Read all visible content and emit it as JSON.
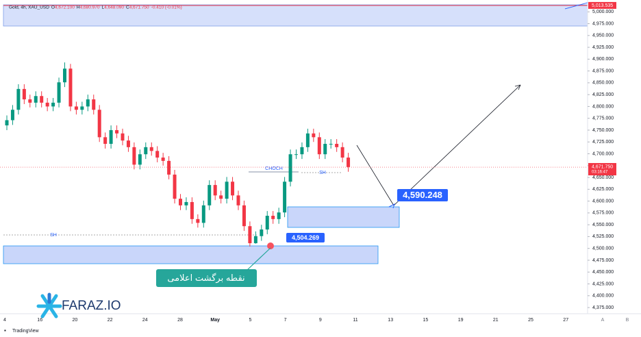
{
  "header": {
    "symbol": "Gold, 4h, XAU_USD",
    "ohlc": [
      {
        "key": "O",
        "value": "4,672.100"
      },
      {
        "key": "H",
        "value": "4,680.970"
      },
      {
        "key": "L",
        "value": "4,648.090"
      },
      {
        "key": "C",
        "value": "4,671.750"
      }
    ],
    "change": "-0.410 (-0.01%)"
  },
  "chart_data": {
    "type": "candlestick",
    "up_color": "#089981",
    "down_color": "#f23645",
    "x_labels": [
      "4",
      "16",
      "20",
      "22",
      "24",
      "28",
      "May",
      "5",
      "7",
      "9",
      "11",
      "13",
      "15",
      "19",
      "21",
      "25",
      "27"
    ],
    "series": [
      {
        "name": "Gold",
        "open": [
          4760,
          4771,
          4793,
          4837,
          4815,
          4808,
          4822,
          4808,
          4800,
          4808,
          4851,
          4880,
          4800,
          4793,
          4800,
          4815,
          4793,
          4735,
          4721,
          4750,
          4743,
          4728,
          4714,
          4677,
          4699,
          4714,
          4706,
          4692,
          4685,
          4656,
          4605,
          4591,
          4598,
          4562,
          4554,
          4591,
          4634,
          4612,
          4605,
          4641,
          4612,
          4591,
          4547,
          4511,
          4526,
          4540,
          4569,
          4562,
          4576,
          4641,
          4699,
          4699,
          4714,
          4743,
          4735,
          4699,
          4721,
          4721,
          4714,
          4692
        ],
        "high": [
          4781,
          4803,
          4847,
          4847,
          4825,
          4832,
          4832,
          4818,
          4818,
          4861,
          4893,
          4890,
          4810,
          4810,
          4825,
          4825,
          4803,
          4745,
          4760,
          4760,
          4753,
          4738,
          4724,
          4709,
          4724,
          4724,
          4716,
          4702,
          4695,
          4666,
          4615,
          4608,
          4608,
          4572,
          4601,
          4644,
          4644,
          4622,
          4651,
          4651,
          4622,
          4601,
          4557,
          4536,
          4550,
          4579,
          4579,
          4586,
          4651,
          4709,
          4709,
          4724,
          4753,
          4753,
          4745,
          4731,
          4731,
          4731,
          4724,
          4702
        ],
        "low": [
          4750,
          4761,
          4783,
          4805,
          4798,
          4798,
          4798,
          4790,
          4790,
          4798,
          4841,
          4790,
          4783,
          4783,
          4790,
          4783,
          4725,
          4711,
          4711,
          4733,
          4718,
          4704,
          4667,
          4667,
          4689,
          4696,
          4682,
          4675,
          4646,
          4595,
          4581,
          4581,
          4552,
          4544,
          4544,
          4581,
          4602,
          4595,
          4595,
          4602,
          4581,
          4537,
          4504,
          4510,
          4516,
          4530,
          4552,
          4552,
          4566,
          4631,
          4689,
          4689,
          4704,
          4725,
          4689,
          4689,
          4711,
          4704,
          4682,
          4662
        ],
        "close": [
          4771,
          4793,
          4837,
          4815,
          4808,
          4822,
          4808,
          4800,
          4808,
          4851,
          4880,
          4800,
          4793,
          4800,
          4815,
          4793,
          4735,
          4721,
          4750,
          4743,
          4728,
          4714,
          4677,
          4699,
          4714,
          4706,
          4692,
          4685,
          4656,
          4605,
          4591,
          4598,
          4562,
          4554,
          4591,
          4634,
          4612,
          4605,
          4641,
          4612,
          4591,
          4547,
          4511,
          4526,
          4540,
          4569,
          4562,
          4576,
          4641,
          4699,
          4699,
          4714,
          4743,
          4735,
          4699,
          4721,
          4721,
          4714,
          4692,
          4672
        ]
      }
    ],
    "ylim": [
      4362,
      5025
    ],
    "yticks": [
      {
        "value": 5000,
        "label": "5,000.000"
      },
      {
        "value": 4975,
        "label": "4,975.000"
      },
      {
        "value": 4950,
        "label": "4,950.000"
      },
      {
        "value": 4925,
        "label": "4,925.000"
      },
      {
        "value": 4900,
        "label": "4,900.000"
      },
      {
        "value": 4875,
        "label": "4,875.000"
      },
      {
        "value": 4850,
        "label": "4,850.000"
      },
      {
        "value": 4825,
        "label": "4,825.000"
      },
      {
        "value": 4800,
        "label": "4,800.000"
      },
      {
        "value": 4775,
        "label": "4,775.000"
      },
      {
        "value": 4750,
        "label": "4,750.000"
      },
      {
        "value": 4725,
        "label": "4,725.000"
      },
      {
        "value": 4700,
        "label": "4,700.000"
      },
      {
        "value": 4675,
        "label": "4,675.000"
      },
      {
        "value": 4650,
        "label": "4,650.000"
      },
      {
        "value": 4625,
        "label": "4,625.000"
      },
      {
        "value": 4600,
        "label": "4,600.000"
      },
      {
        "value": 4575,
        "label": "4,575.000"
      },
      {
        "value": 4550,
        "label": "4,550.000"
      },
      {
        "value": 4525,
        "label": "4,525.000"
      },
      {
        "value": 4500,
        "label": "4,500.000"
      },
      {
        "value": 4475,
        "label": "4,475.000"
      },
      {
        "value": 4450,
        "label": "4,450.000"
      },
      {
        "value": 4425,
        "label": "4,425.000"
      },
      {
        "value": 4400,
        "label": "4,400.000"
      },
      {
        "value": 4375,
        "label": "4,375.000"
      }
    ],
    "grid": false,
    "top_level": {
      "value": 5013.535,
      "label": "5,013.535"
    },
    "last_price": {
      "value": 4671.75,
      "label": "4,671.750"
    },
    "countdown": "03:16:47",
    "annotations": {
      "choch": "CHOCH",
      "sh_left": "SH",
      "sh_right": "SH",
      "target": "4,590.248",
      "low_point": "4,504.269",
      "callout": "نقطه  برگشت اعلامی"
    }
  },
  "branding": {
    "logo": "FARAZ.IO",
    "footer": "TradingView",
    "scale_buttons": [
      "A",
      "B"
    ]
  }
}
